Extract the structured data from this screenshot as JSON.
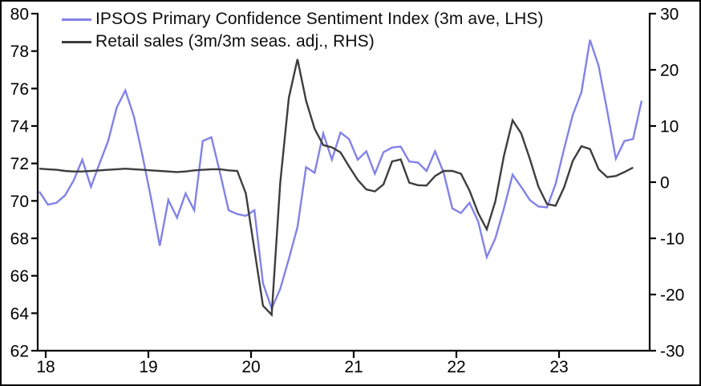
{
  "legend": {
    "items": [
      {
        "label": "IPSOS Primary Confidence Sentiment Index (3m ave, LHS)",
        "color": "#8282e8"
      },
      {
        "label": "Retail sales (3m/3m seas. adj., RHS)",
        "color": "#3d3d3d"
      }
    ]
  },
  "chart_data": {
    "type": "line",
    "title": "",
    "grid": false,
    "legend_position": "top-left",
    "background": "#ffffff",
    "axis_color": "#000000",
    "x_axis": {
      "tick_labels": [
        "18",
        "19",
        "20",
        "21",
        "22",
        "23"
      ],
      "meaning": "years 2018-2023, monthly observations"
    },
    "left_axis": {
      "range": [
        62,
        80
      ],
      "ticks": [
        80,
        78,
        76,
        74,
        72,
        70,
        68,
        66,
        64,
        62
      ],
      "series": "IPSOS Primary Confidence Sentiment Index"
    },
    "right_axis": {
      "range": [
        -30,
        30
      ],
      "ticks": [
        30,
        20,
        10,
        0,
        -10,
        -20,
        -30
      ],
      "series": "Retail sales"
    },
    "series": [
      {
        "name": "IPSOS Primary Confidence Sentiment Index (3m ave, LHS)",
        "axis": "left",
        "color": "#8282e8",
        "start": "2018-01",
        "end": "2023-11",
        "frequency": "monthly",
        "values": [
          70.5,
          69.8,
          69.9,
          70.3,
          71.1,
          72.2,
          70.75,
          72.0,
          73.2,
          75.0,
          75.9,
          74.5,
          72.4,
          70.1,
          67.6,
          70.05,
          69.1,
          70.4,
          69.5,
          73.2,
          73.4,
          71.5,
          69.5,
          69.3,
          69.2,
          69.5,
          65.6,
          64.25,
          65.3,
          66.9,
          68.6,
          71.8,
          71.5,
          73.6,
          72.2,
          73.65,
          73.3,
          72.2,
          72.65,
          71.45,
          72.6,
          72.85,
          72.9,
          72.1,
          72.05,
          71.6,
          72.65,
          71.5,
          69.6,
          69.35,
          69.9,
          68.9,
          67.0,
          68.0,
          69.6,
          71.4,
          70.75,
          70.05,
          69.7,
          69.65,
          70.9,
          72.8,
          74.6,
          75.8,
          78.6,
          77.2,
          74.8,
          72.25,
          73.2,
          73.3,
          75.35
        ]
      },
      {
        "name": "Retail sales (3m/3m seas. adj., RHS)",
        "axis": "right",
        "color": "#3d3d3d",
        "start": "2018-01",
        "end": "2023-10",
        "frequency": "monthly",
        "values": [
          2.4,
          2.3,
          2.2,
          2.0,
          1.9,
          1.9,
          2.0,
          2.1,
          2.2,
          2.3,
          2.4,
          2.3,
          2.2,
          2.1,
          2.0,
          1.9,
          1.8,
          1.9,
          2.1,
          2.2,
          2.3,
          2.3,
          2.1,
          2.0,
          -2.0,
          -12.0,
          -22.0,
          -23.6,
          -0.1,
          15.0,
          21.9,
          14.5,
          9.5,
          6.6,
          6.2,
          5.3,
          2.8,
          0.4,
          -1.3,
          -1.65,
          -0.4,
          3.7,
          4.05,
          -0.1,
          -0.55,
          -0.6,
          1.1,
          2.0,
          2.0,
          1.5,
          -1.5,
          -5.5,
          -8.4,
          -3.4,
          4.7,
          11.0,
          8.7,
          4.2,
          -0.8,
          -3.9,
          -4.2,
          -0.9,
          3.8,
          6.4,
          5.9,
          2.3,
          0.9,
          1.1,
          1.8,
          2.6
        ]
      }
    ]
  }
}
